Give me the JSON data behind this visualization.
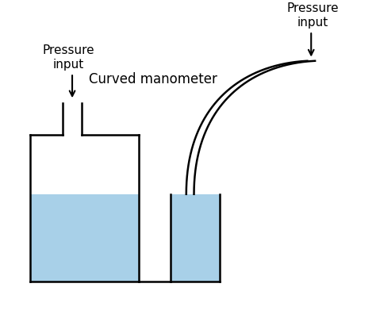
{
  "bg_color": "#ffffff",
  "line_color": "#000000",
  "water_color": "#a8d0e8",
  "fig_width": 4.74,
  "fig_height": 4.02,
  "label_left": "Pressure\ninput",
  "label_right": "Pressure\ninput",
  "label_center": "Curved manometer",
  "font_size": 11
}
